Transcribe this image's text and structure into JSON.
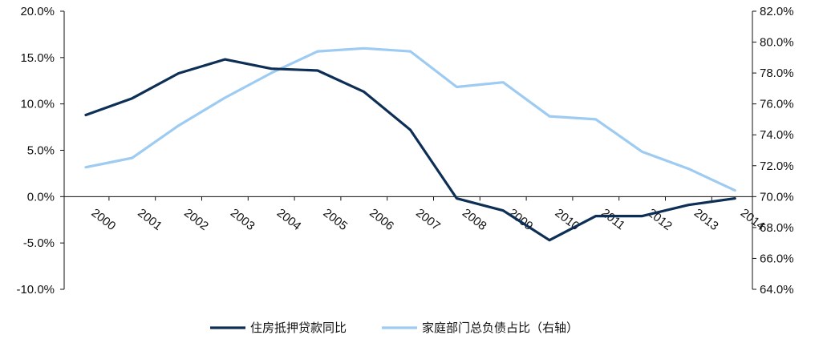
{
  "chart_data": {
    "type": "line",
    "title": "",
    "xlabel": "",
    "ylabel": "",
    "categories": [
      "2000",
      "2001",
      "2002",
      "2003",
      "2004",
      "2005",
      "2006",
      "2007",
      "2008",
      "2009",
      "2010",
      "2011",
      "2012",
      "2013",
      "2014"
    ],
    "y_left": {
      "ylim": [
        -10,
        20
      ],
      "ticks": [
        20,
        15,
        10,
        5,
        0,
        -5,
        -10
      ],
      "tick_labels": [
        "20.0%",
        "15.0%",
        "10.0%",
        "5.0%",
        "0.0%",
        "-5.0%",
        "-10.0%"
      ]
    },
    "y_right": {
      "ylim": [
        64,
        82
      ],
      "ticks": [
        82,
        80,
        78,
        76,
        74,
        72,
        70,
        68,
        66,
        64
      ],
      "tick_labels": [
        "82.0%",
        "80.0%",
        "78.0%",
        "76.0%",
        "74.0%",
        "72.0%",
        "70.0%",
        "68.0%",
        "66.0%",
        "64.0%"
      ]
    },
    "series": [
      {
        "name": "住房抵押贷款同比",
        "axis": "left",
        "color": "#0d2f55",
        "values": [
          8.8,
          10.6,
          13.3,
          14.8,
          13.8,
          13.6,
          11.3,
          7.2,
          -0.2,
          -1.5,
          -4.7,
          -2.1,
          -2.1,
          -0.9,
          -0.2
        ]
      },
      {
        "name": "家庭部门总负债占比（右轴）",
        "axis": "right",
        "color": "#9ecbf2",
        "values": [
          71.9,
          72.5,
          74.6,
          76.4,
          78.0,
          79.4,
          79.6,
          79.4,
          77.1,
          77.4,
          75.2,
          75.0,
          72.9,
          71.8,
          70.4
        ]
      }
    ],
    "legend_position": "bottom-center",
    "grid": false
  }
}
